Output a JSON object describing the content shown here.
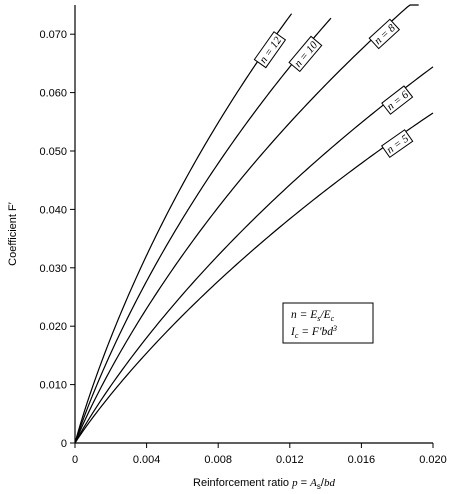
{
  "chart_data": {
    "type": "line",
    "xlabel": "Reinforcement ratio p = As/bd",
    "ylabel": "Coefficient F′",
    "xlim": [
      0,
      0.02
    ],
    "ylim": [
      0,
      0.075
    ],
    "x_ticks": [
      "0",
      "0.004",
      "0.008",
      "0.012",
      "0.016",
      "0.020"
    ],
    "y_ticks": [
      "0",
      "0.010",
      "0.020",
      "0.030",
      "0.040",
      "0.050",
      "0.060",
      "0.070"
    ],
    "grid": false,
    "series": [
      {
        "name": "n = 12",
        "n": 12,
        "x_end": 0.0121
      },
      {
        "name": "n = 10",
        "n": 10,
        "x_end": 0.0143
      },
      {
        "name": "n = 8",
        "n": 8,
        "x_end": 0.0192
      },
      {
        "name": "n = 6",
        "n": 6,
        "x_end": 0.02
      },
      {
        "name": "n = 5",
        "n": 5,
        "x_end": 0.02
      }
    ],
    "legend": {
      "placement": "lower-right",
      "lines": [
        "n = Es/Ec",
        "Ic = F′bd³"
      ]
    }
  }
}
